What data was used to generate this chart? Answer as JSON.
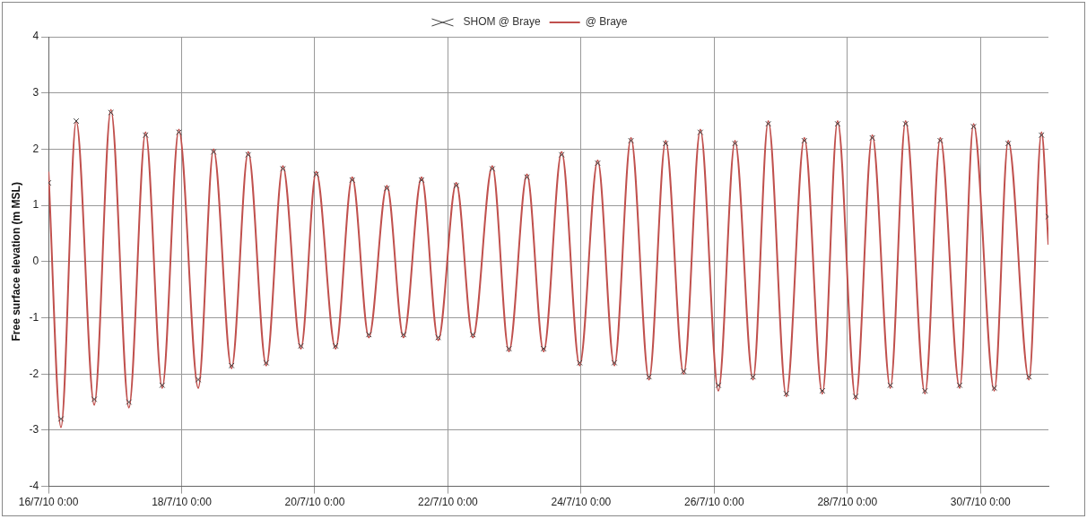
{
  "chart_data": {
    "type": "line",
    "ylabel": "Free surface elevation (m MSL)",
    "xlim": [
      "--07-16T00:00",
      "--07-31T00:30"
    ],
    "xticks": [
      {
        "value": "--07-16T00:00",
        "label": "16/7/10 0:00"
      },
      {
        "value": "--07-18T00:00",
        "label": "18/7/10 0:00"
      },
      {
        "value": "--07-20T00:00",
        "label": "20/7/10 0:00"
      },
      {
        "value": "--07-22T00:00",
        "label": "22/7/10 0:00"
      },
      {
        "value": "--07-24T00:00",
        "label": "24/7/10 0:00"
      },
      {
        "value": "--07-26T00:00",
        "label": "26/7/10 0:00"
      },
      {
        "value": "--07-28T00:00",
        "label": "28/7/10 0:00"
      },
      {
        "value": "--07-30T00:00",
        "label": "30/7/10 0:00"
      }
    ],
    "ylim": [
      -4,
      4
    ],
    "yticks": [
      -4,
      -3,
      -2,
      -1,
      0,
      1,
      2,
      3,
      4
    ],
    "grid": true,
    "legend": "top",
    "x": [
      "--07-16T00:00",
      "--07-16T04:30",
      "--07-16T10:00",
      "--07-16T16:30",
      "--07-16T22:30",
      "--07-17T05:00",
      "--07-17T11:00",
      "--07-17T17:00",
      "--07-17T23:00",
      "--07-18T06:00",
      "--07-18T11:30",
      "--07-18T18:00",
      "--07-19T00:00",
      "--07-19T06:30",
      "--07-19T12:30",
      "--07-19T19:00",
      "--07-20T00:30",
      "--07-20T07:30",
      "--07-20T13:30",
      "--07-20T19:30",
      "--07-21T02:00",
      "--07-21T08:00",
      "--07-21T14:30",
      "--07-21T20:30",
      "--07-22T03:00",
      "--07-22T09:00",
      "--07-22T16:00",
      "--07-22T22:00",
      "--07-23T04:30",
      "--07-23T10:30",
      "--07-23T17:00",
      "--07-23T23:30",
      "--07-24T06:00",
      "--07-24T12:00",
      "--07-24T18:00",
      "--07-25T00:30",
      "--07-25T06:30",
      "--07-25T13:00",
      "--07-25T19:00",
      "--07-26T01:30",
      "--07-26T07:30",
      "--07-26T14:00",
      "--07-26T19:30",
      "--07-27T02:00",
      "--07-27T08:30",
      "--07-27T15:00",
      "--07-27T20:30",
      "--07-28T03:00",
      "--07-28T09:00",
      "--07-28T15:30",
      "--07-28T21:00",
      "--07-29T04:00",
      "--07-29T09:30",
      "--07-29T16:30",
      "--07-29T21:30",
      "--07-30T05:00",
      "--07-30T10:00",
      "--07-30T17:30",
      "--07-30T22:00",
      "--07-31T00:30"
    ],
    "series": [
      {
        "name": "SHOM @ Braye",
        "type": "scatter",
        "marker": "cross",
        "color": "#404040",
        "values": [
          1.4,
          -2.8,
          2.5,
          -2.45,
          2.65,
          -2.5,
          2.25,
          -2.2,
          2.3,
          -2.1,
          1.95,
          -1.85,
          1.9,
          -1.8,
          1.65,
          -1.5,
          1.55,
          -1.5,
          1.45,
          -1.3,
          1.3,
          -1.3,
          1.45,
          -1.35,
          1.35,
          -1.3,
          1.65,
          -1.55,
          1.5,
          -1.55,
          1.9,
          -1.8,
          1.75,
          -1.8,
          2.15,
          -2.05,
          2.1,
          -1.95,
          2.3,
          -2.2,
          2.1,
          -2.05,
          2.45,
          -2.35,
          2.15,
          -2.3,
          2.45,
          -2.4,
          2.2,
          -2.2,
          2.45,
          -2.3,
          2.15,
          -2.2,
          2.4,
          -2.25,
          2.1,
          -2.05,
          2.25,
          0.8
        ]
      },
      {
        "name": "@ Braye",
        "marker": "none",
        "line_style": "solid",
        "color": "#c0504d",
        "values": [
          1.6,
          -2.95,
          2.5,
          -2.55,
          2.7,
          -2.6,
          2.3,
          -2.25,
          2.35,
          -2.25,
          2.0,
          -1.9,
          1.95,
          -1.85,
          1.7,
          -1.55,
          1.6,
          -1.55,
          1.5,
          -1.35,
          1.35,
          -1.35,
          1.5,
          -1.4,
          1.4,
          -1.35,
          1.7,
          -1.6,
          1.55,
          -1.6,
          1.95,
          -1.85,
          1.8,
          -1.85,
          2.2,
          -2.1,
          2.15,
          -2.0,
          2.35,
          -2.3,
          2.15,
          -2.1,
          2.5,
          -2.4,
          2.2,
          -2.35,
          2.5,
          -2.45,
          2.25,
          -2.25,
          2.5,
          -2.35,
          2.2,
          -2.25,
          2.45,
          -2.3,
          2.15,
          -2.1,
          2.3,
          0.3
        ]
      }
    ]
  }
}
